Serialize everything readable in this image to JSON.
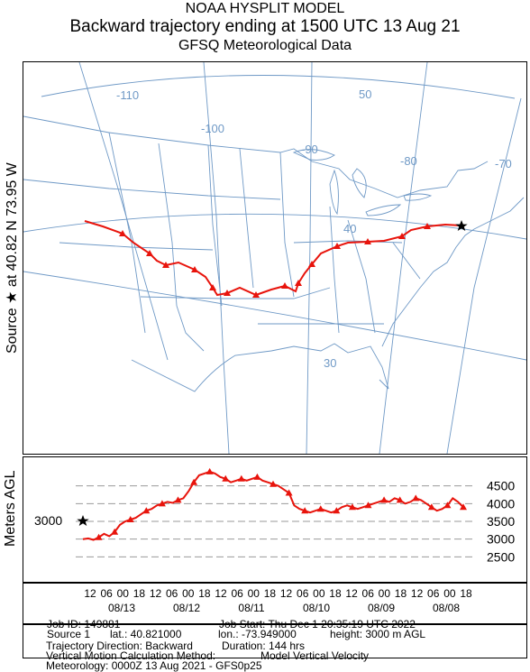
{
  "header": {
    "model": "NOAA HYSPLIT MODEL",
    "title": "Backward trajectory ending at 1500 UTC 13 Aug 21",
    "meteo": "GFSQ Meteorological Data"
  },
  "side": {
    "source_text": "Source ★ at 40.82 N 73.95 W",
    "meters_agl": "Meters AGL"
  },
  "map": {
    "lon_labels": [
      "-110",
      "-100",
      "-90",
      "-80",
      "-70"
    ],
    "lat_labels": [
      "50",
      "40",
      "30"
    ],
    "colors": {
      "lines": "#6f99c6",
      "track": "#e8140c",
      "marker": "#000000"
    },
    "source_marker": "star-icon"
  },
  "height_panel": {
    "y_ticks": [
      "4500",
      "4000",
      "3500",
      "3000",
      "2500"
    ],
    "start_label": "3000"
  },
  "time_axis": {
    "hour_labels": [
      "12",
      "06",
      "00",
      "18",
      "12",
      "06",
      "00",
      "18",
      "12",
      "06",
      "00",
      "18",
      "12",
      "06",
      "00",
      "18",
      "12",
      "06",
      "00",
      "18",
      "12",
      "06",
      "00",
      "18"
    ],
    "date_labels": [
      "08/13",
      "08/12",
      "08/11",
      "08/10",
      "08/09",
      "08/08"
    ]
  },
  "info": {
    "job_id": "Job ID: 149881",
    "job_start": "Job Start: Thu Dec  1 20:35:19 UTC 2022",
    "source": "Source 1",
    "lat": "lat.: 40.821000",
    "lon": "lon.: -73.949000",
    "height": "height: 3000 m AGL",
    "direction": "Trajectory Direction: Backward",
    "duration": "Duration: 144 hrs",
    "vertical_method": "Vertical Motion Calculation Method:",
    "vertical_value": "Model Vertical Velocity",
    "meteorology": "Meteorology: 0000Z 13 Aug 2021 - GFS0p25"
  },
  "chart_data": {
    "type": "line",
    "title": "",
    "xlabel": "",
    "ylabel": "Meters AGL",
    "x_direction": "backward",
    "x_unit": "hours before 1500 UTC 13 Aug 2021",
    "ylim": [
      2000,
      5000
    ],
    "y_ticks": [
      2500,
      3000,
      3500,
      4000,
      4500
    ],
    "grid": true,
    "series": [
      {
        "x": [
          0,
          2,
          4,
          6,
          8,
          10,
          12,
          14,
          16,
          18,
          20,
          22,
          24,
          26,
          28,
          30,
          32,
          34,
          36,
          38,
          40,
          42,
          44,
          46,
          48,
          50,
          52,
          54,
          56,
          58,
          60,
          62,
          64,
          66,
          68,
          70,
          72,
          74,
          76,
          78,
          80,
          82,
          84,
          86,
          88,
          90,
          92,
          94,
          96,
          98,
          100,
          102,
          104,
          106,
          108,
          110,
          112,
          114,
          116,
          118,
          120,
          122,
          124,
          126,
          128,
          130,
          132,
          134,
          136,
          138,
          140,
          142,
          144
        ],
        "values": [
          3000,
          3020,
          2980,
          3050,
          3150,
          3080,
          3200,
          3400,
          3500,
          3550,
          3600,
          3700,
          3800,
          3850,
          3950,
          4000,
          4050,
          4020,
          4100,
          4150,
          4350,
          4600,
          4800,
          4850,
          4900,
          4850,
          4750,
          4700,
          4600,
          4650,
          4700,
          4650,
          4700,
          4750,
          4650,
          4600,
          4550,
          4500,
          4400,
          4300,
          3950,
          3850,
          3800,
          3750,
          3800,
          3850,
          3800,
          3750,
          3800,
          3900,
          3950,
          3900,
          3850,
          3900,
          3950,
          4000,
          4050,
          4100,
          4050,
          4150,
          4100,
          4000,
          4050,
          4150,
          4100,
          4000,
          3900,
          3800,
          3850,
          3950,
          4150,
          4050,
          3900
        ]
      }
    ]
  }
}
